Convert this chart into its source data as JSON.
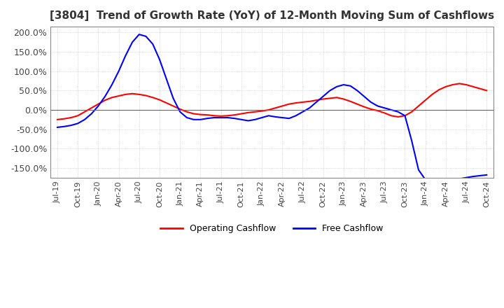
{
  "title": "[3804]  Trend of Growth Rate (YoY) of 12-Month Moving Sum of Cashflows",
  "title_fontsize": 11,
  "ylim": [
    -175,
    215
  ],
  "yticks": [
    -150,
    -100,
    -50,
    0,
    50,
    100,
    150,
    200
  ],
  "ytick_labels": [
    "-150.0%",
    "-100.0%",
    "-50.0%",
    "0.0%",
    "50.0%",
    "100.0%",
    "150.0%",
    "200.0%"
  ],
  "legend_labels": [
    "Operating Cashflow",
    "Free Cashflow"
  ],
  "legend_colors": [
    "#ff0000",
    "#0000ff"
  ],
  "operating_cashflow_y": [
    -25,
    -23,
    -20,
    -15,
    -5,
    5,
    15,
    25,
    32,
    36,
    40,
    42,
    40,
    37,
    32,
    26,
    18,
    10,
    2,
    -5,
    -10,
    -12,
    -13,
    -15,
    -16,
    -15,
    -13,
    -10,
    -7,
    -5,
    -3,
    0,
    5,
    10,
    15,
    18,
    20,
    22,
    25,
    28,
    30,
    32,
    28,
    22,
    15,
    8,
    2,
    -2,
    -8,
    -15,
    -18,
    -15,
    -5,
    10,
    25,
    40,
    52,
    60,
    65,
    68,
    65,
    60,
    55,
    50
  ],
  "free_cashflow_y": [
    -45,
    -43,
    -40,
    -35,
    -25,
    -10,
    10,
    35,
    65,
    100,
    140,
    175,
    195,
    190,
    170,
    130,
    80,
    30,
    -5,
    -20,
    -25,
    -25,
    -22,
    -20,
    -20,
    -20,
    -22,
    -25,
    -28,
    -25,
    -20,
    -15,
    -18,
    -20,
    -22,
    -15,
    -5,
    5,
    20,
    35,
    50,
    60,
    65,
    62,
    50,
    35,
    20,
    10,
    5,
    0,
    -5,
    -15,
    -80,
    -155,
    -180,
    -185,
    -185,
    -185,
    -180,
    -178,
    -175,
    -172,
    -170,
    -168
  ],
  "x_tick_labels": [
    "Jul-19",
    "Oct-19",
    "Jan-20",
    "Apr-20",
    "Jul-20",
    "Oct-20",
    "Jan-21",
    "Apr-21",
    "Jul-21",
    "Oct-21",
    "Jan-22",
    "Apr-22",
    "Jul-22",
    "Oct-22",
    "Jan-23",
    "Apr-23",
    "Jul-23",
    "Oct-23",
    "Jan-24",
    "Apr-24",
    "Jul-24",
    "Oct-24"
  ],
  "background_color": "#ffffff",
  "grid_color": "#aaaaaa",
  "plot_bg_color": "#ffffff"
}
